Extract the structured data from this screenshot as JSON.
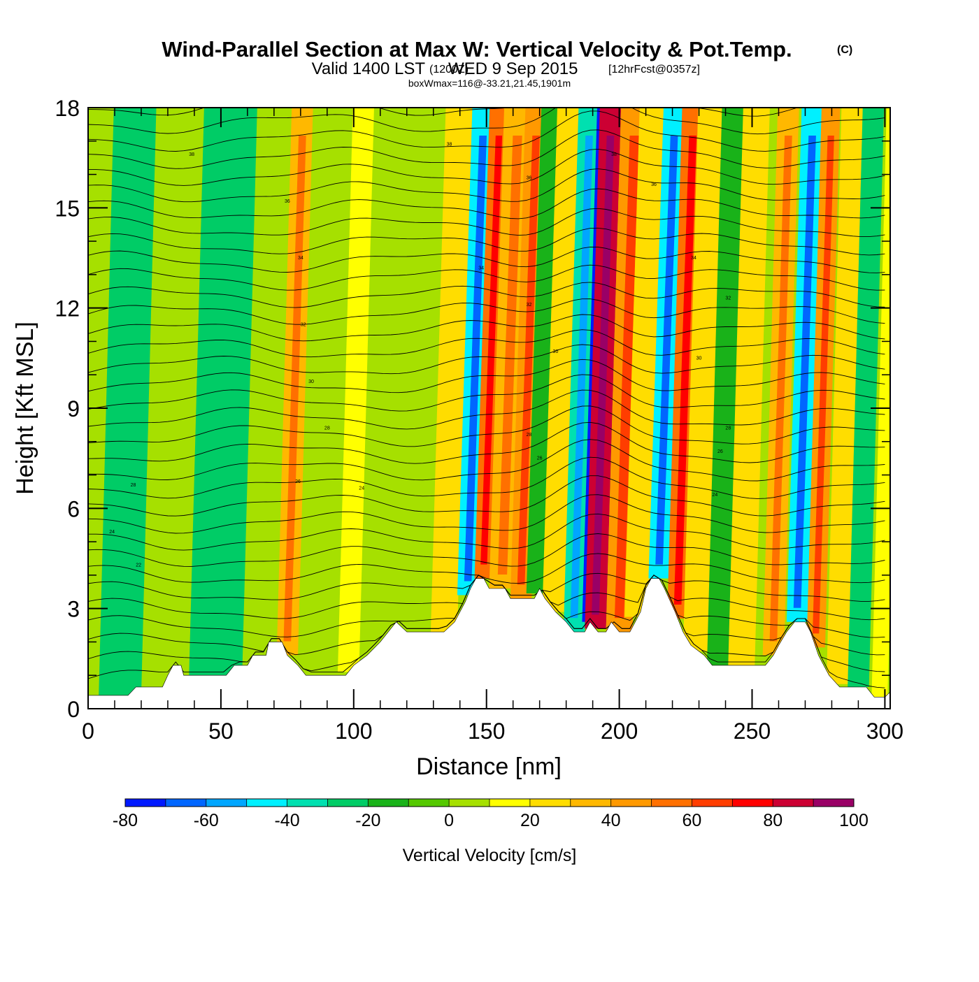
{
  "chart_data": {
    "type": "heatmap",
    "title": "Wind-Parallel Section at Max W: Vertical Velocity & Pot.Temp.",
    "title_mark": "(C)",
    "subtitle": {
      "valid": "Valid 1400 LST",
      "zulu": "(1200Z)",
      "date": "WED 9 Sep 2015",
      "forecast": "[12hrFcst@0357z]"
    },
    "box_wmax": "boxWmax=116@-33.21,21.45,1901m",
    "xlabel": "Distance [nm]",
    "ylabel": "Height [Kft MSL]",
    "xlim": [
      0,
      302
    ],
    "ylim": [
      0,
      18
    ],
    "x_ticks": [
      "0",
      "50",
      "100",
      "150",
      "200",
      "250",
      "300"
    ],
    "y_ticks": [
      "0",
      "3",
      "6",
      "9",
      "12",
      "15",
      "18"
    ],
    "colorbar": {
      "label": "Vertical Velocity [cm/s]",
      "levels": [
        -80,
        -70,
        -60,
        -50,
        -40,
        -30,
        -20,
        -10,
        0,
        10,
        20,
        30,
        40,
        50,
        60,
        70,
        80,
        90,
        100
      ],
      "tick_labels": [
        "-80",
        "-60",
        "-40",
        "-20",
        "0",
        "20",
        "40",
        "60",
        "80",
        "100"
      ],
      "colors": [
        "#0019ff",
        "#0066ff",
        "#00a6ff",
        "#00f0ff",
        "#00e0b0",
        "#00cc66",
        "#19b219",
        "#55c800",
        "#a6e000",
        "#ffff00",
        "#ffdd00",
        "#ffb800",
        "#ff9900",
        "#ff7000",
        "#ff3d00",
        "#ff0000",
        "#cc0033",
        "#990066"
      ]
    },
    "terrain_kft": [
      [
        0,
        0.4
      ],
      [
        15,
        0.4
      ],
      [
        18,
        0.65
      ],
      [
        28,
        0.65
      ],
      [
        30,
        1.0
      ],
      [
        32,
        1.3
      ],
      [
        35,
        1.3
      ],
      [
        36,
        1.0
      ],
      [
        52,
        1.0
      ],
      [
        55,
        1.3
      ],
      [
        60,
        1.3
      ],
      [
        62,
        1.6
      ],
      [
        67,
        1.6
      ],
      [
        68,
        2.0
      ],
      [
        73,
        2.0
      ],
      [
        75,
        1.6
      ],
      [
        79,
        1.3
      ],
      [
        82,
        1.0
      ],
      [
        97,
        1.0
      ],
      [
        100,
        1.3
      ],
      [
        105,
        1.6
      ],
      [
        110,
        2.0
      ],
      [
        113,
        2.3
      ],
      [
        116,
        2.6
      ],
      [
        120,
        2.3
      ],
      [
        134,
        2.3
      ],
      [
        138,
        2.6
      ],
      [
        142,
        3.2
      ],
      [
        144,
        3.6
      ],
      [
        146,
        3.9
      ],
      [
        149,
        3.9
      ],
      [
        151,
        3.6
      ],
      [
        157,
        3.6
      ],
      [
        159,
        3.3
      ],
      [
        168,
        3.3
      ],
      [
        170,
        3.6
      ],
      [
        172,
        3.3
      ],
      [
        176,
        2.9
      ],
      [
        180,
        2.6
      ],
      [
        183,
        2.3
      ],
      [
        187,
        2.3
      ],
      [
        189,
        2.6
      ],
      [
        192,
        2.3
      ],
      [
        195,
        2.3
      ],
      [
        197,
        2.6
      ],
      [
        200,
        2.3
      ],
      [
        204,
        2.3
      ],
      [
        208,
        2.9
      ],
      [
        210,
        3.6
      ],
      [
        212,
        3.9
      ],
      [
        215,
        3.9
      ],
      [
        217,
        3.6
      ],
      [
        221,
        2.9
      ],
      [
        224,
        2.3
      ],
      [
        227,
        1.9
      ],
      [
        232,
        1.6
      ],
      [
        235,
        1.3
      ],
      [
        255,
        1.3
      ],
      [
        258,
        1.6
      ],
      [
        260,
        1.9
      ],
      [
        263,
        2.3
      ],
      [
        266,
        2.6
      ],
      [
        270,
        2.6
      ],
      [
        272,
        2.3
      ],
      [
        275,
        1.6
      ],
      [
        279,
        1.0
      ],
      [
        283,
        0.65
      ],
      [
        293,
        0.65
      ],
      [
        296,
        0.35
      ],
      [
        300,
        0.35
      ],
      [
        302,
        0.5
      ]
    ],
    "bands": [
      {
        "x": 12,
        "w": 8,
        "v": -25
      },
      {
        "x": 48,
        "w": 10,
        "v": -22
      },
      {
        "x": 75,
        "w": 4,
        "v": 35
      },
      {
        "x": 98,
        "w": 4,
        "v": 18
      },
      {
        "x": 134,
        "w": 5,
        "v": 22
      },
      {
        "x": 143,
        "w": 4,
        "v": -42
      },
      {
        "x": 149,
        "w": 3.5,
        "v": 55
      },
      {
        "x": 156,
        "w": 5,
        "v": 35
      },
      {
        "x": 163,
        "w": 4,
        "v": 42
      },
      {
        "x": 169,
        "w": 4,
        "v": -15
      },
      {
        "x": 176,
        "w": 5,
        "v": 22
      },
      {
        "x": 183,
        "w": 4,
        "v": -35
      },
      {
        "x": 189,
        "w": 3,
        "v": -75
      },
      {
        "x": 191,
        "w": 4,
        "v": 80
      },
      {
        "x": 200,
        "w": 5,
        "v": 40
      },
      {
        "x": 207,
        "w": 5,
        "v": 28
      },
      {
        "x": 215,
        "w": 4,
        "v": -45
      },
      {
        "x": 222,
        "w": 4,
        "v": 50
      },
      {
        "x": 230,
        "w": 6,
        "v": 28
      },
      {
        "x": 238,
        "w": 5,
        "v": -20
      },
      {
        "x": 246,
        "w": 5,
        "v": 28
      },
      {
        "x": 258,
        "w": 4,
        "v": 35
      },
      {
        "x": 267,
        "w": 4,
        "v": -45
      },
      {
        "x": 274,
        "w": 3.5,
        "v": 45
      },
      {
        "x": 282,
        "w": 4,
        "v": 25
      },
      {
        "x": 290,
        "w": 4,
        "v": -28
      },
      {
        "x": 298,
        "w": 3,
        "v": 15
      }
    ],
    "theta_labels": [
      {
        "x": 39,
        "y": 16.6,
        "text": "38"
      },
      {
        "x": 75,
        "y": 15.2,
        "text": "36"
      },
      {
        "x": 80,
        "y": 13.5,
        "text": "34"
      },
      {
        "x": 81,
        "y": 11.5,
        "text": "32"
      },
      {
        "x": 84,
        "y": 9.8,
        "text": "30"
      },
      {
        "x": 90,
        "y": 8.4,
        "text": "28"
      },
      {
        "x": 79,
        "y": 6.8,
        "text": "26"
      },
      {
        "x": 103,
        "y": 6.6,
        "text": "24"
      },
      {
        "x": 17,
        "y": 6.7,
        "text": "28"
      },
      {
        "x": 9,
        "y": 5.3,
        "text": "24"
      },
      {
        "x": 19,
        "y": 4.3,
        "text": "22"
      },
      {
        "x": 136,
        "y": 16.9,
        "text": "38"
      },
      {
        "x": 166,
        "y": 15.9,
        "text": "36"
      },
      {
        "x": 148,
        "y": 13.2,
        "text": "34"
      },
      {
        "x": 166,
        "y": 12.1,
        "text": "32"
      },
      {
        "x": 176,
        "y": 10.7,
        "text": "30"
      },
      {
        "x": 166,
        "y": 8.2,
        "text": "28"
      },
      {
        "x": 170,
        "y": 7.5,
        "text": "26"
      },
      {
        "x": 198,
        "y": 16.6,
        "text": "38"
      },
      {
        "x": 213,
        "y": 15.7,
        "text": "36"
      },
      {
        "x": 228,
        "y": 13.5,
        "text": "34"
      },
      {
        "x": 241,
        "y": 12.3,
        "text": "32"
      },
      {
        "x": 230,
        "y": 10.5,
        "text": "30"
      },
      {
        "x": 241,
        "y": 8.4,
        "text": "28"
      },
      {
        "x": 238,
        "y": 7.7,
        "text": "26"
      },
      {
        "x": 236,
        "y": 6.4,
        "text": "24"
      }
    ]
  }
}
